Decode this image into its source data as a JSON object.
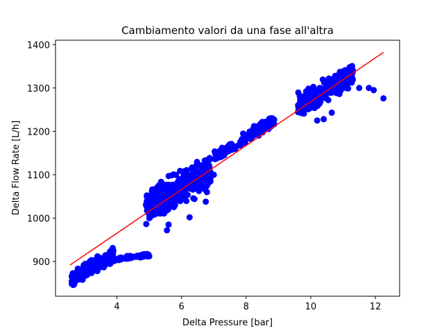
{
  "chart_data": {
    "type": "scatter",
    "title": "Cambiamento valori da una fase all'altra",
    "xlabel": "Delta Pressure [bar]",
    "ylabel": "Delta Flow Rate [L/h]",
    "xlim": [
      2.1,
      12.75
    ],
    "ylim": [
      820,
      1410
    ],
    "xticks": [
      4,
      6,
      8,
      10,
      12
    ],
    "yticks": [
      900,
      1000,
      1100,
      1200,
      1300,
      1400
    ],
    "grid": false,
    "legend": "none",
    "colors": {
      "points": "#0000ff",
      "fit_line": "#ff0000"
    },
    "clusters": [
      {
        "x_range": [
          2.6,
          3.9
        ],
        "y_center": 888,
        "y_spread": 12,
        "count": 240
      },
      {
        "x_range": [
          3.9,
          5.0
        ],
        "y_center": 910,
        "y_spread": 4,
        "count": 40
      },
      {
        "x_range": [
          4.9,
          6.9
        ],
        "y_center": 1065,
        "y_spread": 28,
        "count": 420
      },
      {
        "x_range": [
          7.0,
          8.0
        ],
        "y_center": 1162,
        "y_spread": 8,
        "count": 80
      },
      {
        "x_range": [
          7.9,
          8.9
        ],
        "y_center": 1205,
        "y_spread": 10,
        "count": 100
      },
      {
        "x_range": [
          9.6,
          11.3
        ],
        "y_center": 1295,
        "y_spread": 22,
        "count": 260
      }
    ],
    "points": [
      {
        "x": 2.65,
        "y": 846
      },
      {
        "x": 3.4,
        "y": 912
      },
      {
        "x": 5.0,
        "y": 912
      },
      {
        "x": 5.55,
        "y": 972
      },
      {
        "x": 5.6,
        "y": 985
      },
      {
        "x": 6.25,
        "y": 1002
      },
      {
        "x": 6.75,
        "y": 1038
      },
      {
        "x": 7.0,
        "y": 1100
      },
      {
        "x": 10.2,
        "y": 1225
      },
      {
        "x": 10.4,
        "y": 1228
      },
      {
        "x": 10.65,
        "y": 1243
      },
      {
        "x": 11.5,
        "y": 1300
      },
      {
        "x": 11.8,
        "y": 1300
      },
      {
        "x": 11.95,
        "y": 1295
      },
      {
        "x": 12.25,
        "y": 1276
      }
    ],
    "fit_line": {
      "x": [
        2.55,
        12.25
      ],
      "y": [
        892,
        1382
      ]
    }
  }
}
